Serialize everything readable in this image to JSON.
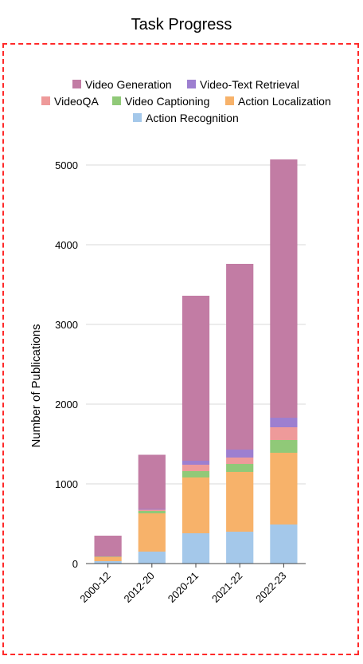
{
  "chart_data": {
    "type": "bar",
    "stacked": true,
    "title": "Task Progress",
    "xlabel": "",
    "ylabel": "Number of Publications",
    "ylim": [
      0,
      5000
    ],
    "yticks": [
      0,
      1000,
      2000,
      3000,
      4000,
      5000
    ],
    "grid": true,
    "legend_position": "top",
    "categories": [
      "2000-12",
      "2012-20",
      "2020-21",
      "2021-22",
      "2022-23"
    ],
    "series": [
      {
        "name": "Action Recognition",
        "color": "#a4c8ea",
        "values": [
          30,
          150,
          380,
          400,
          490
        ]
      },
      {
        "name": "Action Localization",
        "color": "#f7b26a",
        "values": [
          50,
          480,
          700,
          750,
          900
        ]
      },
      {
        "name": "Video Captioning",
        "color": "#90c978",
        "values": [
          5,
          30,
          80,
          100,
          160
        ]
      },
      {
        "name": "VideoQA",
        "color": "#ee9a9a",
        "values": [
          5,
          15,
          80,
          80,
          160
        ]
      },
      {
        "name": "Video-Text Retrieval",
        "color": "#9d7fd0",
        "values": [
          0,
          10,
          50,
          100,
          120
        ]
      },
      {
        "name": "Video Generation",
        "color": "#c27ca4",
        "values": [
          260,
          680,
          2070,
          2330,
          3240
        ]
      }
    ],
    "legend_order": [
      "Video Generation",
      "Video-Text Retrieval",
      "VideoQA",
      "Video Captioning",
      "Action Localization",
      "Action Recognition"
    ]
  }
}
